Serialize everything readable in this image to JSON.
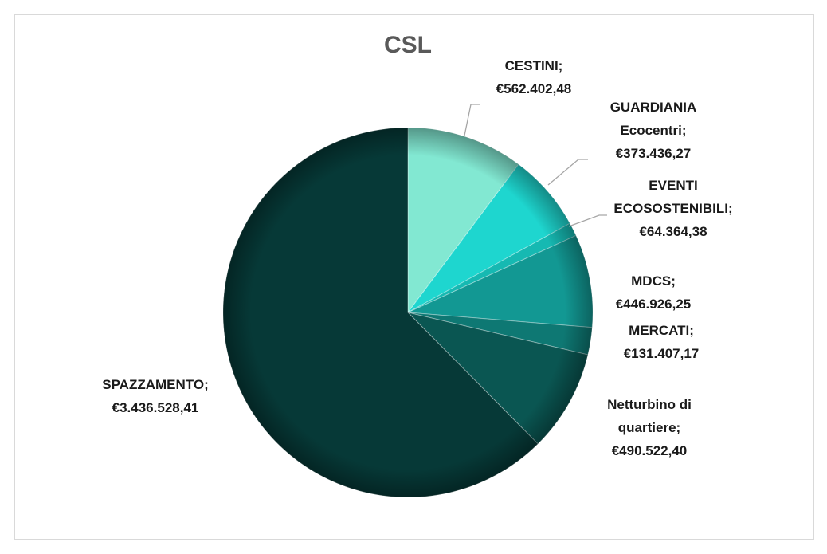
{
  "chart_data": {
    "type": "pie",
    "title": "CSL",
    "categories": [
      "CESTINI;",
      "GUARDIANIA Ecocentri;",
      "EVENTI ECOSOSTENIBILI;",
      "MDCS;",
      "MERCATI;",
      "Netturbino di quartiere;",
      "SPAZZAMENTO;"
    ],
    "values": [
      562402.48,
      373436.27,
      64364.38,
      446926.25,
      131407.17,
      490522.4,
      3436528.41
    ],
    "value_labels": [
      "€562.402,48",
      "€373.436,27",
      "€64.364,38",
      "€446.926,25",
      "€131.407,17",
      "€490.522,40",
      "€3.436.528,41"
    ],
    "colors": [
      "#82e8d2",
      "#1ed6cf",
      "#16b9b2",
      "#129893",
      "#0e7873",
      "#0a5652",
      "#063937"
    ]
  }
}
